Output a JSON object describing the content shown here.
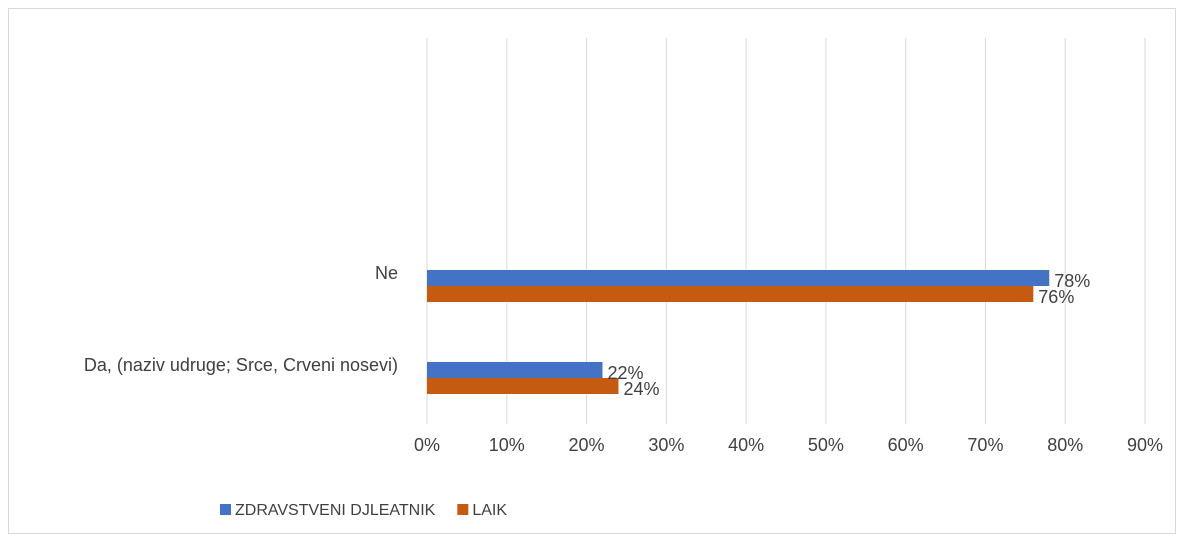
{
  "chart_data": {
    "type": "bar",
    "orientation": "horizontal",
    "categories": [
      "Ne",
      "Da, (naziv udruge; Srce, Crveni nosevi)"
    ],
    "series": [
      {
        "name": "ZDRAVSTVENI DJLEATNIK",
        "values": [
          78,
          22
        ],
        "labels": [
          "78%",
          "22%"
        ],
        "color": "#4472c4"
      },
      {
        "name": "LAIK",
        "values": [
          76,
          24
        ],
        "labels": [
          "76%",
          "24%"
        ],
        "color": "#c55a11"
      }
    ],
    "xlim": [
      0,
      90
    ],
    "xticks": [
      0,
      10,
      20,
      30,
      40,
      50,
      60,
      70,
      80,
      90
    ],
    "xtick_labels": [
      "0%",
      "10%",
      "20%",
      "30%",
      "40%",
      "50%",
      "60%",
      "70%",
      "80%",
      "90%"
    ],
    "grid": "vertical",
    "legend_position": "bottom-left",
    "title": "",
    "xlabel": "",
    "ylabel": ""
  }
}
